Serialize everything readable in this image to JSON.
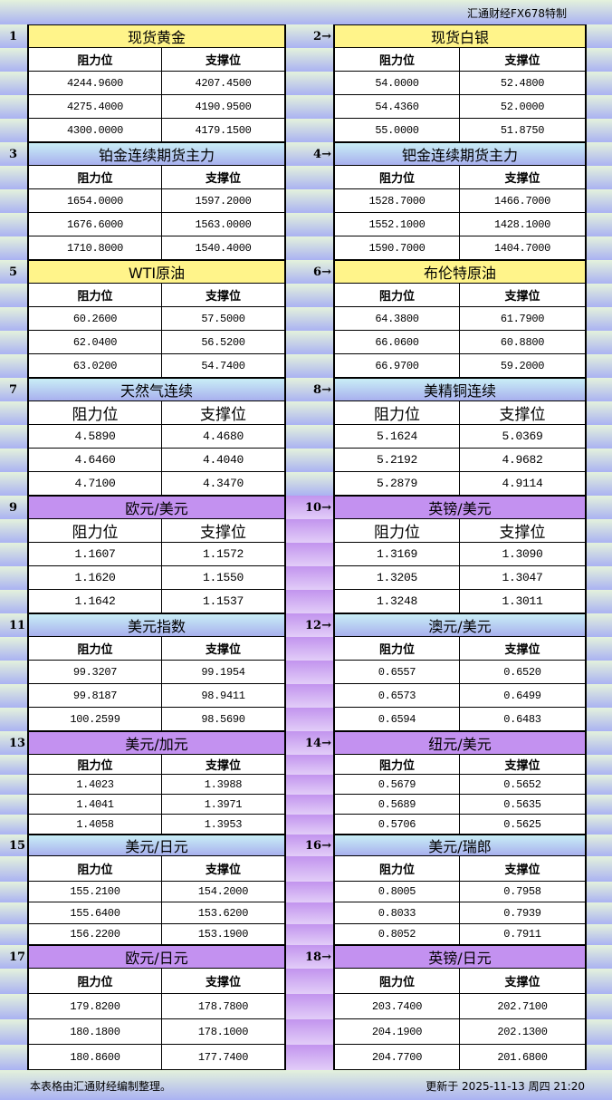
{
  "title": "汇通财经FX678特制",
  "column_labels": {
    "resistance": "阻力位",
    "support": "支撑位"
  },
  "header_colors": {
    "yellow": "#fff48a",
    "blue": "#b8d8f2",
    "purple": "#c391f0"
  },
  "sections": [
    {
      "left": {
        "num": "1",
        "name": "现货黄金",
        "rows": [
          [
            "4244.9600",
            "4207.4500"
          ],
          [
            "4275.4000",
            "4190.9500"
          ],
          [
            "4300.0000",
            "4179.1500"
          ]
        ]
      },
      "right": {
        "num": "2→",
        "name": "现货白银",
        "rows": [
          [
            "54.0000",
            "52.4800"
          ],
          [
            "54.4360",
            "52.0000"
          ],
          [
            "55.0000",
            "51.8750"
          ]
        ]
      },
      "color": "yellow"
    },
    {
      "left": {
        "num": "3",
        "name": "铂金连续期货主力",
        "rows": [
          [
            "1654.0000",
            "1597.2000"
          ],
          [
            "1676.6000",
            "1563.0000"
          ],
          [
            "1710.8000",
            "1540.4000"
          ]
        ]
      },
      "right": {
        "num": "4→",
        "name": "钯金连续期货主力",
        "rows": [
          [
            "1528.7000",
            "1466.7000"
          ],
          [
            "1552.1000",
            "1428.1000"
          ],
          [
            "1590.7000",
            "1404.7000"
          ]
        ]
      },
      "color": "blue"
    },
    {
      "left": {
        "num": "5",
        "name": "WTI原油",
        "rows": [
          [
            "60.2600",
            "57.5000"
          ],
          [
            "62.0400",
            "56.5200"
          ],
          [
            "63.0200",
            "54.7400"
          ]
        ]
      },
      "right": {
        "num": "6→",
        "name": "布伦特原油",
        "rows": [
          [
            "64.3800",
            "61.7900"
          ],
          [
            "66.0600",
            "60.8800"
          ],
          [
            "66.9700",
            "59.2000"
          ]
        ]
      },
      "color": "yellow"
    },
    {
      "left": {
        "num": "7",
        "name": "天然气连续",
        "rows": [
          [
            "4.5890",
            "4.4680"
          ],
          [
            "4.6460",
            "4.4040"
          ],
          [
            "4.7100",
            "4.3470"
          ]
        ]
      },
      "right": {
        "num": "8→",
        "name": "美精铜连续",
        "rows": [
          [
            "5.1624",
            "5.0369"
          ],
          [
            "5.2192",
            "4.9682"
          ],
          [
            "5.2879",
            "4.9114"
          ]
        ]
      },
      "color": "blue"
    },
    {
      "left": {
        "num": "9",
        "name": "欧元/美元",
        "rows": [
          [
            "1.1607",
            "1.1572"
          ],
          [
            "1.1620",
            "1.1550"
          ],
          [
            "1.1642",
            "1.1537"
          ]
        ]
      },
      "right": {
        "num": "10→",
        "name": "英镑/美元",
        "rows": [
          [
            "1.3169",
            "1.3090"
          ],
          [
            "1.3205",
            "1.3047"
          ],
          [
            "1.3248",
            "1.3011"
          ]
        ]
      },
      "color": "purple"
    },
    {
      "left": {
        "num": "11",
        "name": "美元指数",
        "rows": [
          [
            "99.3207",
            "99.1954"
          ],
          [
            "99.8187",
            "98.9411"
          ],
          [
            "100.2599",
            "98.5690"
          ]
        ]
      },
      "right": {
        "num": "12→",
        "name": "澳元/美元",
        "rows": [
          [
            "0.6557",
            "0.6520"
          ],
          [
            "0.6573",
            "0.6499"
          ],
          [
            "0.6594",
            "0.6483"
          ]
        ]
      },
      "color": "blue"
    },
    {
      "left": {
        "num": "13",
        "name": "美元/加元",
        "rows": [
          [
            "1.4023",
            "1.3988"
          ],
          [
            "1.4041",
            "1.3971"
          ],
          [
            "1.4058",
            "1.3953"
          ]
        ]
      },
      "right": {
        "num": "14→",
        "name": "纽元/美元",
        "rows": [
          [
            "0.5679",
            "0.5652"
          ],
          [
            "0.5689",
            "0.5635"
          ],
          [
            "0.5706",
            "0.5625"
          ]
        ]
      },
      "color": "purple"
    },
    {
      "left": {
        "num": "15",
        "name": "美元/日元",
        "rows": [
          [
            "155.2100",
            "154.2000"
          ],
          [
            "155.6400",
            "153.6200"
          ],
          [
            "156.2200",
            "153.1900"
          ]
        ]
      },
      "right": {
        "num": "16→",
        "name": "美元/瑞郎",
        "rows": [
          [
            "0.8005",
            "0.7958"
          ],
          [
            "0.8033",
            "0.7939"
          ],
          [
            "0.8052",
            "0.7911"
          ]
        ]
      },
      "color": "blue"
    },
    {
      "left": {
        "num": "17",
        "name": "欧元/日元",
        "rows": [
          [
            "179.8200",
            "178.7800"
          ],
          [
            "180.1800",
            "178.1000"
          ],
          [
            "180.8600",
            "177.7400"
          ]
        ]
      },
      "right": {
        "num": "18→",
        "name": "英镑/日元",
        "rows": [
          [
            "203.7400",
            "202.7100"
          ],
          [
            "204.1900",
            "202.1300"
          ],
          [
            "204.7700",
            "201.6800"
          ]
        ]
      },
      "color": "purple"
    }
  ],
  "footer": {
    "note": "本表格由汇通财经编制整理。",
    "updated": "更新于 2025-11-13 周四 21:20"
  }
}
